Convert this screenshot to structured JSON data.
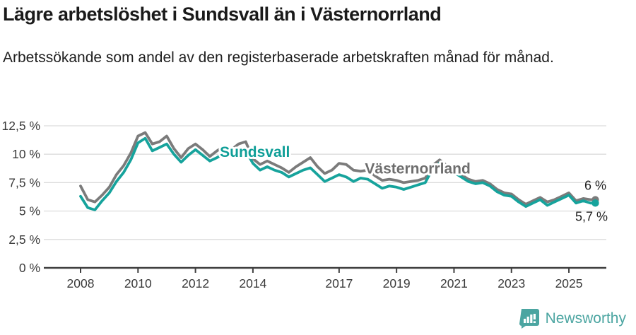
{
  "header": {
    "title": "Lägre arbetslöshet i Sundsvall än i Västernorrland",
    "subtitle": "Arbetssökande som andel av den registerbaserade arbetskraften månad för månad."
  },
  "footer": {
    "brand": "Newsworthy"
  },
  "colors": {
    "sundsvall": "#16A39C",
    "sundsvall_label": "#0E9E97",
    "vasternorrland": "#7B7B7B",
    "vasternorrland_label": "#6E6E6E",
    "axis_text": "#3a3a3a",
    "axis_line": "#3f3f3f",
    "grid": "#dcdcdc",
    "end_label": "#1f1f1f",
    "logo": "#4BA5A1"
  },
  "chart_data": {
    "type": "line",
    "title": "Lägre arbetslöshet i Sundsvall än i Västernorrland",
    "subtitle": "Arbetssökande som andel av den registerbaserade arbetskraften månad för månad.",
    "xlabel": "",
    "ylabel": "",
    "ylim": [
      0,
      12.5
    ],
    "grid": true,
    "legend_position": "inline-labels",
    "y_tick_values": [
      12.5,
      10,
      7.5,
      5,
      2.5,
      0
    ],
    "y_tick_labels": [
      "12,5 %",
      "10 %",
      "7,5 %",
      "5 %",
      "2,5 %",
      "0 %"
    ],
    "x_tick_years": [
      2008,
      2010,
      2012,
      2014,
      2017,
      2019,
      2021,
      2023,
      2025
    ],
    "x_tick_labels": [
      "2008",
      "2010",
      "2012",
      "2014",
      "2017",
      "2019",
      "2021",
      "2023",
      "2025"
    ],
    "x": [
      2008.0,
      2008.25,
      2008.5,
      2008.75,
      2009.0,
      2009.25,
      2009.5,
      2009.75,
      2010.0,
      2010.25,
      2010.5,
      2010.75,
      2011.0,
      2011.25,
      2011.5,
      2011.75,
      2012.0,
      2012.25,
      2012.5,
      2012.75,
      2013.0,
      2013.25,
      2013.5,
      2013.75,
      2014.0,
      2014.25,
      2014.5,
      2014.75,
      2015.0,
      2015.25,
      2015.5,
      2015.75,
      2016.0,
      2016.25,
      2016.5,
      2016.75,
      2017.0,
      2017.25,
      2017.5,
      2017.75,
      2018.0,
      2018.25,
      2018.5,
      2018.75,
      2019.0,
      2019.25,
      2019.5,
      2019.75,
      2020.0,
      2020.25,
      2020.5,
      2020.75,
      2021.0,
      2021.25,
      2021.5,
      2021.75,
      2022.0,
      2022.25,
      2022.5,
      2022.75,
      2023.0,
      2023.25,
      2023.5,
      2023.75,
      2024.0,
      2024.25,
      2024.5,
      2024.75,
      2025.0,
      2025.25,
      2025.5,
      2025.75,
      2025.92
    ],
    "series": [
      {
        "name": "Västernorrland",
        "color": "#7B7B7B",
        "end_label": "6 %",
        "end_value": 6.0,
        "values": [
          7.2,
          6.0,
          5.8,
          6.4,
          7.1,
          8.2,
          9.0,
          10.1,
          11.6,
          11.9,
          10.9,
          11.1,
          11.6,
          10.5,
          9.7,
          10.5,
          10.9,
          10.4,
          9.8,
          10.3,
          10.7,
          10.4,
          10.9,
          11.1,
          9.6,
          9.1,
          9.4,
          9.1,
          8.8,
          8.4,
          8.9,
          9.3,
          9.7,
          8.9,
          8.3,
          8.6,
          9.2,
          9.1,
          8.6,
          8.5,
          8.6,
          8.1,
          7.7,
          7.8,
          7.7,
          7.5,
          7.6,
          7.7,
          7.9,
          9.0,
          9.5,
          9.0,
          8.6,
          8.2,
          7.8,
          7.6,
          7.7,
          7.4,
          6.9,
          6.6,
          6.5,
          6.0,
          5.6,
          5.9,
          6.2,
          5.8,
          6.0,
          6.3,
          6.6,
          5.9,
          6.1,
          6.0,
          6.0
        ]
      },
      {
        "name": "Sundsvall",
        "color": "#16A39C",
        "end_label": "5,7 %",
        "end_value": 5.7,
        "values": [
          6.3,
          5.3,
          5.1,
          5.9,
          6.6,
          7.6,
          8.4,
          9.5,
          11.0,
          11.4,
          10.3,
          10.6,
          10.9,
          10.0,
          9.3,
          9.9,
          10.4,
          9.9,
          9.4,
          9.7,
          10.1,
          9.8,
          10.2,
          10.3,
          9.2,
          8.6,
          8.9,
          8.6,
          8.4,
          8.0,
          8.3,
          8.6,
          8.8,
          8.2,
          7.6,
          7.9,
          8.2,
          8.0,
          7.6,
          7.9,
          7.8,
          7.4,
          7.0,
          7.2,
          7.1,
          6.9,
          7.1,
          7.3,
          7.5,
          8.7,
          9.2,
          8.8,
          8.4,
          8.0,
          7.6,
          7.4,
          7.5,
          7.2,
          6.7,
          6.4,
          6.3,
          5.8,
          5.4,
          5.7,
          6.0,
          5.5,
          5.8,
          6.1,
          6.4,
          5.7,
          5.9,
          5.7,
          5.7
        ]
      }
    ],
    "inline_labels": [
      {
        "text": "Sundsvall",
        "x_year": 2012.85,
        "value_anchor": 9.75,
        "color": "#0E9E97"
      },
      {
        "text": "Västernorrland",
        "x_year": 2017.9,
        "value_anchor": 8.3,
        "color": "#6E6E6E"
      }
    ]
  }
}
